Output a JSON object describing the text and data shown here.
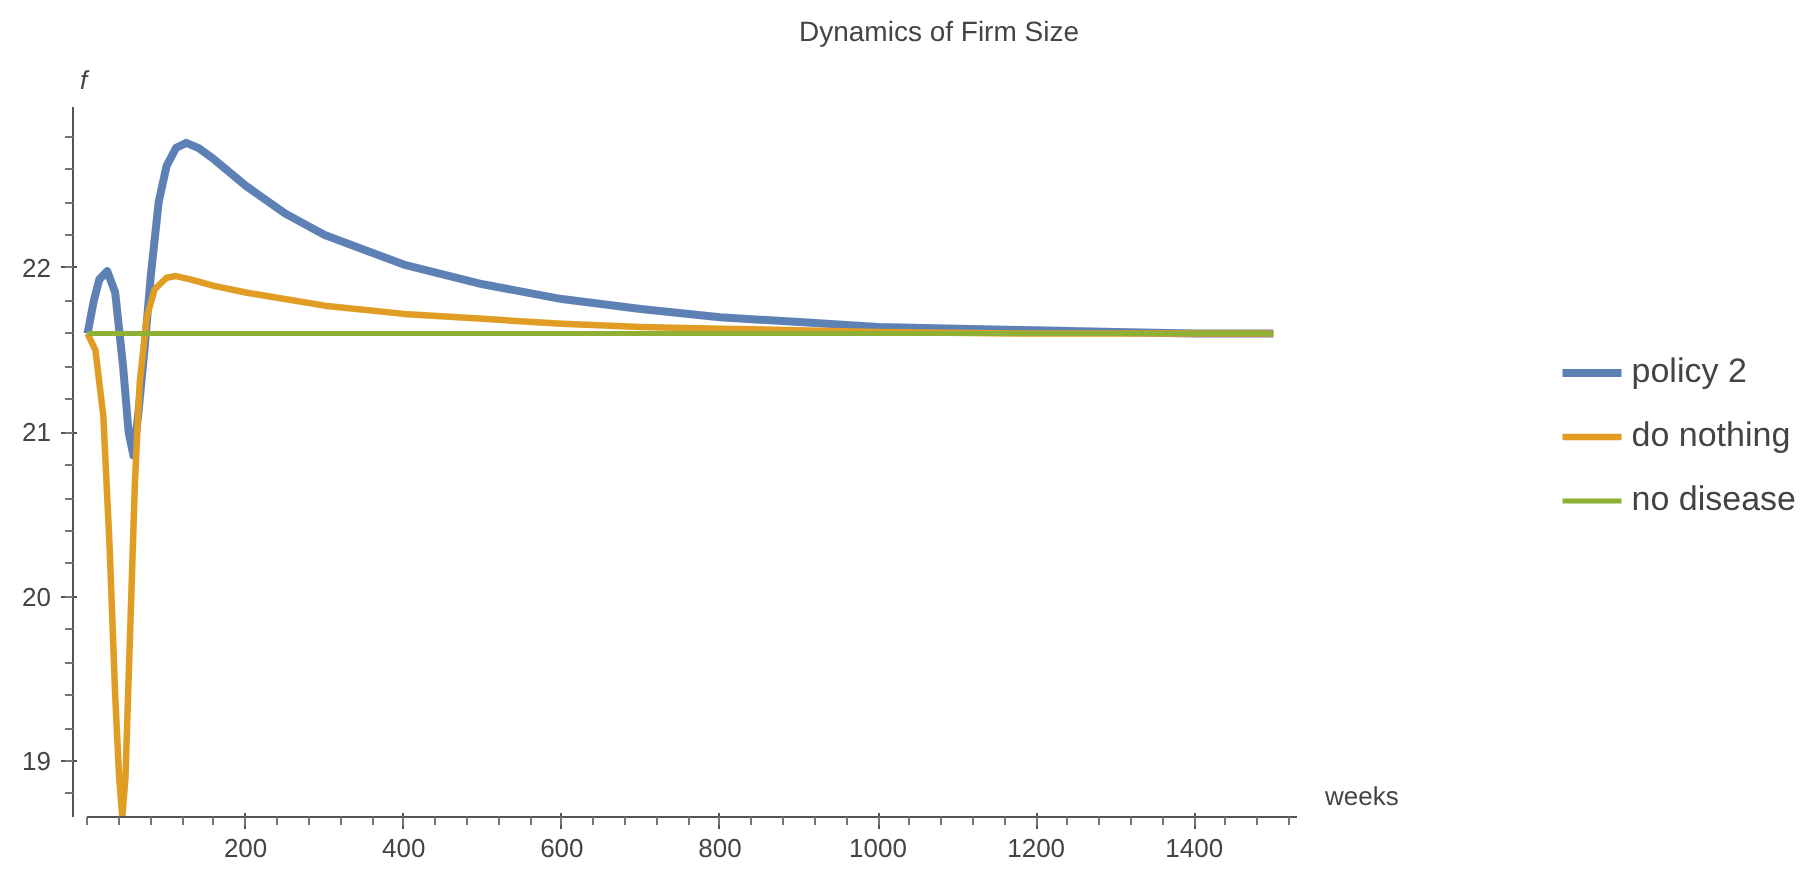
{
  "chart_data": {
    "type": "line",
    "title": "Dynamics of Firm Size",
    "xlabel": "weeks",
    "ylabel": "f",
    "xlim": [
      0,
      1530
    ],
    "ylim": [
      18.66,
      22.98
    ],
    "xticks": [
      200,
      400,
      600,
      800,
      1000,
      1200,
      1400
    ],
    "yticks": [
      19,
      20,
      21,
      22
    ],
    "grid": false,
    "legend": "right",
    "line_style": "solid",
    "marker": "none",
    "series": [
      {
        "name": "policy 2",
        "color": "#5e81b5",
        "x": [
          0,
          8,
          15,
          25,
          35,
          45,
          52,
          58,
          64,
          72,
          80,
          90,
          100,
          112,
          125,
          140,
          160,
          200,
          250,
          300,
          400,
          500,
          600,
          700,
          800,
          900,
          1000,
          1100,
          1200,
          1300,
          1400,
          1500
        ],
        "values": [
          21.6,
          21.8,
          21.93,
          21.98,
          21.85,
          21.4,
          21.0,
          20.86,
          21.1,
          21.5,
          21.95,
          22.4,
          22.62,
          22.73,
          22.76,
          22.73,
          22.66,
          22.5,
          22.33,
          22.2,
          22.02,
          21.9,
          21.81,
          21.75,
          21.7,
          21.67,
          21.64,
          21.63,
          21.62,
          21.61,
          21.6,
          21.6
        ]
      },
      {
        "name": "do nothing",
        "color": "#e19c24",
        "x": [
          0,
          10,
          20,
          28,
          35,
          40,
          44,
          48,
          54,
          60,
          66,
          75,
          85,
          100,
          112,
          130,
          160,
          200,
          300,
          400,
          500,
          600,
          700,
          800,
          1000,
          1200,
          1500
        ],
        "values": [
          21.6,
          21.5,
          21.1,
          20.3,
          19.4,
          18.9,
          18.66,
          18.9,
          19.8,
          20.7,
          21.3,
          21.7,
          21.87,
          21.94,
          21.95,
          21.93,
          21.89,
          21.85,
          21.77,
          21.72,
          21.69,
          21.66,
          21.64,
          21.63,
          21.61,
          21.6,
          21.6
        ]
      },
      {
        "name": "no disease",
        "color": "#8fb032",
        "x": [
          0,
          1500
        ],
        "values": [
          21.6,
          21.6
        ]
      }
    ]
  }
}
